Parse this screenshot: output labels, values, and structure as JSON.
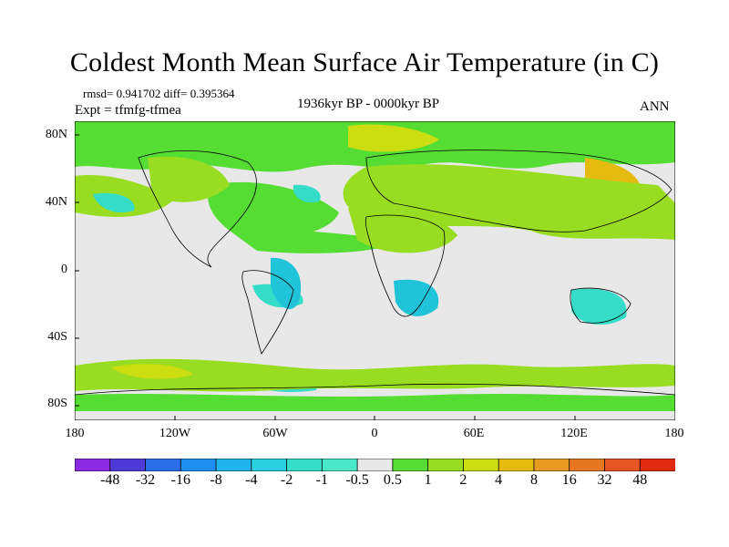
{
  "title": "Coldest Month Mean Surface Air Temperature (in C)",
  "stats": "rmsd= 0.941702 diff= 0.395364",
  "experiment": "Expt = tfmfg-tfmea",
  "period": "1936kyr BP - 0000kyr BP",
  "season": "ANN",
  "lat_labels": [
    "80N",
    "40N",
    "0",
    "40S",
    "80S"
  ],
  "lon_labels": [
    "180",
    "120W",
    "60W",
    "0",
    "60E",
    "120E",
    "180"
  ],
  "colorbar": {
    "labels": [
      "-48",
      "-32",
      "-16",
      "-8",
      "-4",
      "-2",
      "-1",
      "-0.5",
      "0.5",
      "1",
      "2",
      "4",
      "8",
      "16",
      "32",
      "48"
    ],
    "colors": [
      "#8a2be2",
      "#4f3ad8",
      "#2a6ee8",
      "#1e8ff0",
      "#21b3ee",
      "#2ad0e0",
      "#35dcc8",
      "#48e8c8",
      "#e8e8e8",
      "#55dd33",
      "#99dd22",
      "#ccdd11",
      "#e6bb11",
      "#e69a22",
      "#e67722",
      "#e65522",
      "#e02a10"
    ]
  },
  "field_colors": {
    "neutral": "#e8e8e8",
    "cool1": "#35dcc8",
    "cool2": "#21c3d8",
    "warm1": "#55dd33",
    "warm2": "#99dd22",
    "warm3": "#ccdd11",
    "warm4": "#e6bb11",
    "warm5": "#e69a22"
  }
}
